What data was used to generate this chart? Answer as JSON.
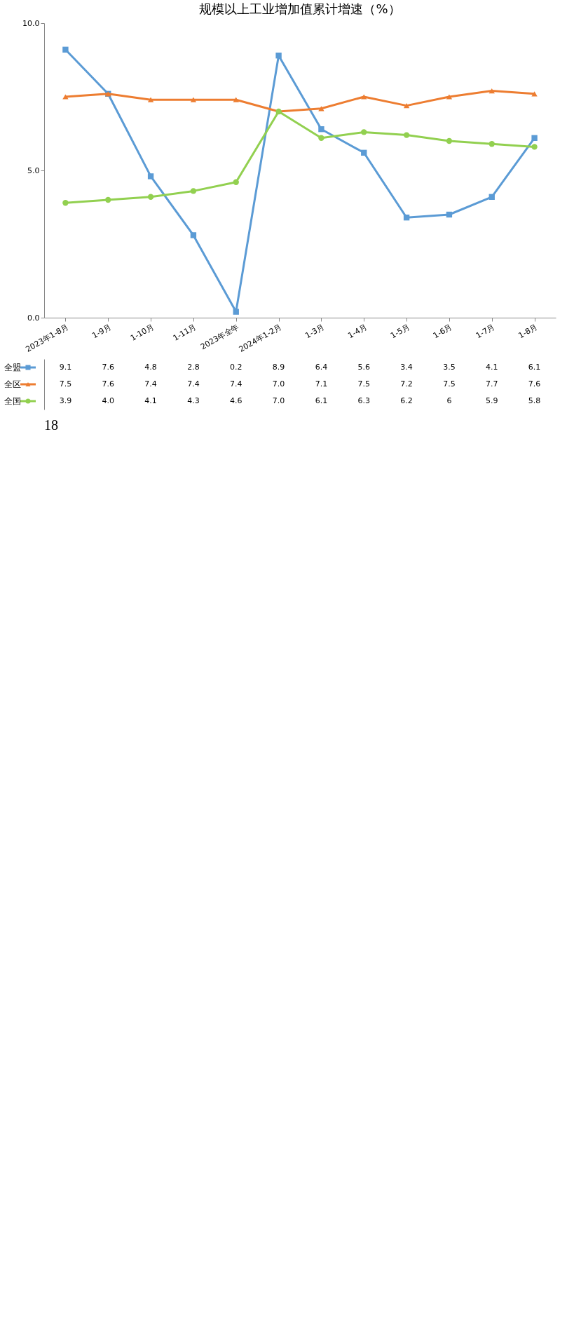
{
  "chart_data": {
    "type": "line",
    "title": "规模以上工业增加值累计增速（%）",
    "categories": [
      "2023年1-8月",
      "1-9月",
      "1-10月",
      "1-11月",
      "2023年全年",
      "2024年1-2月",
      "1-3月",
      "1-4月",
      "1-5月",
      "1-6月",
      "1-7月",
      "1-8月"
    ],
    "series": [
      {
        "name": "全盟",
        "color": "#5b9bd5",
        "marker": "square",
        "values": [
          9.1,
          7.6,
          4.8,
          2.8,
          0.2,
          8.9,
          6.4,
          5.6,
          3.4,
          3.5,
          4.1,
          6.1
        ],
        "value_labels": [
          "9.1",
          "7.6",
          "4.8",
          "2.8",
          "0.2",
          "8.9",
          "6.4",
          "5.6",
          "3.4",
          "3.5",
          "4.1",
          "6.1"
        ]
      },
      {
        "name": "全区",
        "color": "#ed7d31",
        "marker": "triangle",
        "values": [
          7.5,
          7.6,
          7.4,
          7.4,
          7.4,
          7.0,
          7.1,
          7.5,
          7.2,
          7.5,
          7.7,
          7.6
        ],
        "value_labels": [
          "7.5",
          "7.6",
          "7.4",
          "7.4",
          "7.4",
          "7.0",
          "7.1",
          "7.5",
          "7.2",
          "7.5",
          "7.7",
          "7.6"
        ]
      },
      {
        "name": "全国",
        "color": "#92d050",
        "marker": "circle",
        "values": [
          3.9,
          4.0,
          4.1,
          4.3,
          4.6,
          7.0,
          6.1,
          6.3,
          6.2,
          6,
          5.9,
          5.8
        ],
        "value_labels": [
          "3.9",
          "4.0",
          "4.1",
          "4.3",
          "4.6",
          "7.0",
          "6.1",
          "6.3",
          "6.2",
          "6",
          "5.9",
          "5.8"
        ]
      }
    ],
    "ylim": [
      0,
      10
    ],
    "yticks": [
      {
        "value": 0,
        "label": "0.0"
      },
      {
        "value": 5,
        "label": "5.0"
      },
      {
        "value": 10,
        "label": "10.0"
      }
    ],
    "legend": "bottom",
    "line_style": "solid",
    "annotations": [
      "18"
    ]
  }
}
